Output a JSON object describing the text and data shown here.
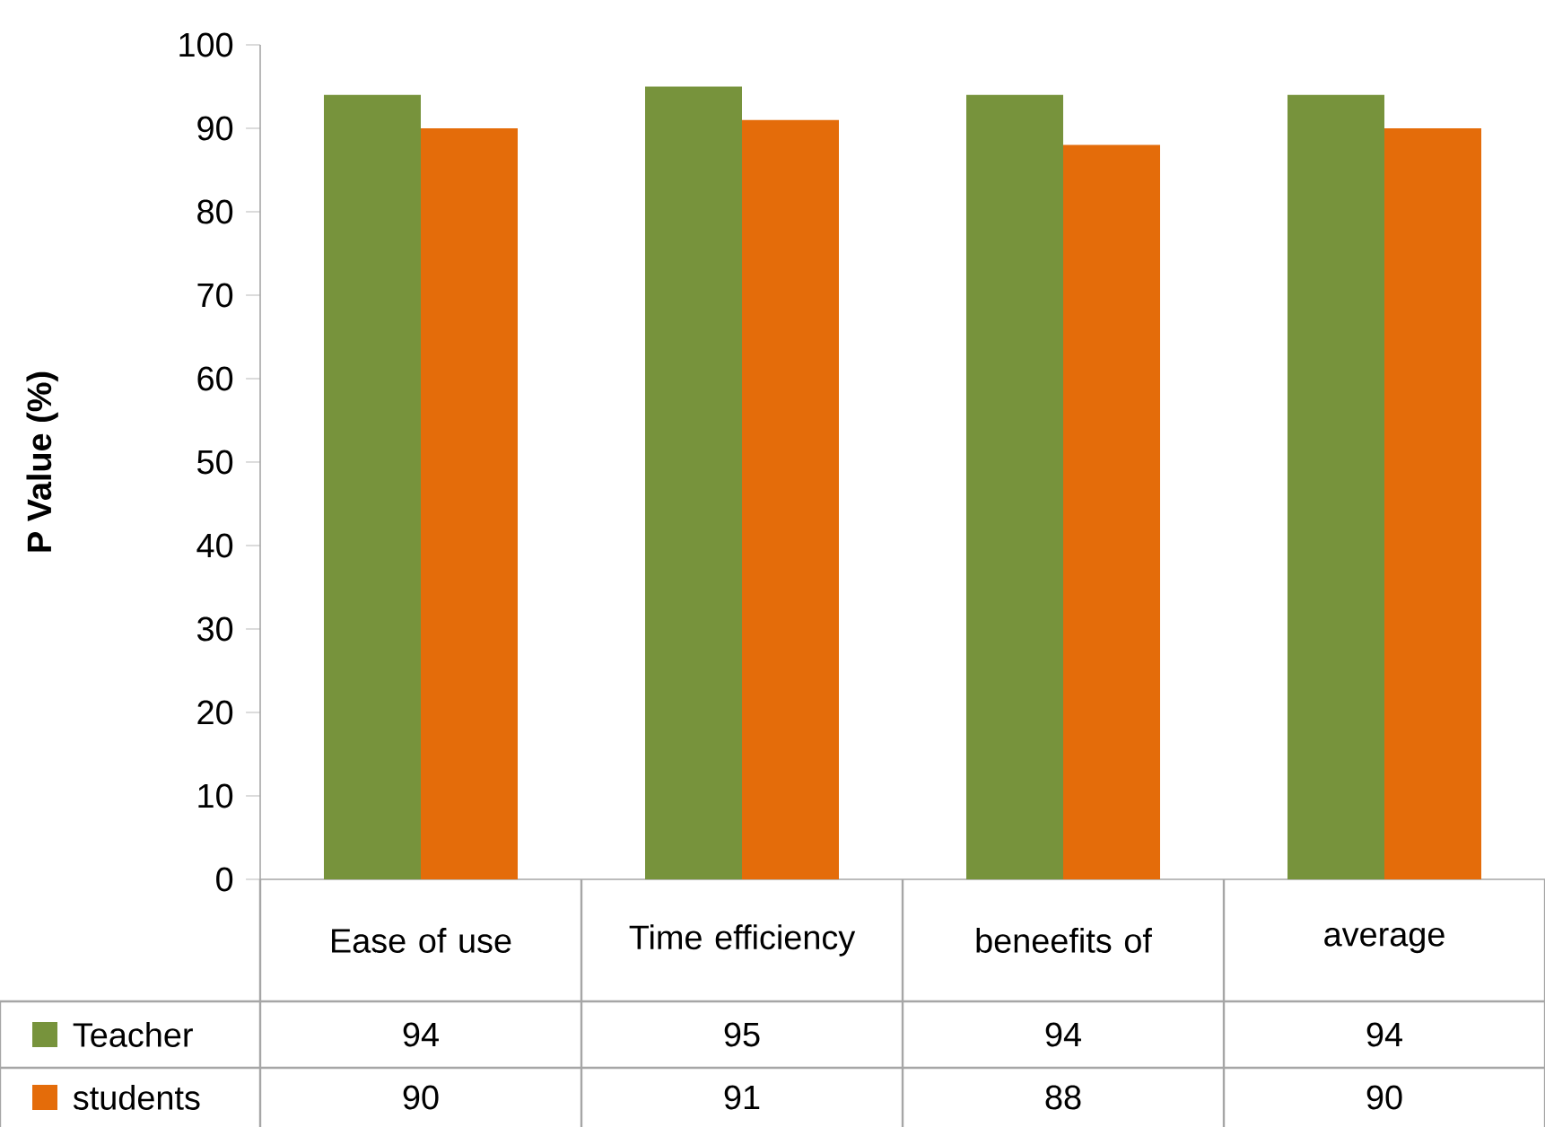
{
  "chart_data": {
    "type": "bar",
    "ylabel": "P Value (%)",
    "categories": [
      "Ease of use",
      "Time efficiency",
      "beneefits of",
      "average"
    ],
    "series": [
      {
        "name": "Teacher",
        "color": "#77933c",
        "values": [
          94,
          95,
          94,
          94
        ]
      },
      {
        "name": "students",
        "color": "#e46c0a",
        "values": [
          90,
          91,
          88,
          90
        ]
      }
    ],
    "ylim": [
      0,
      100
    ],
    "yticks": [
      0,
      10,
      20,
      30,
      40,
      50,
      60,
      70,
      80,
      90,
      100
    ],
    "data_labels": true,
    "legend": "bottom",
    "grid": false
  }
}
